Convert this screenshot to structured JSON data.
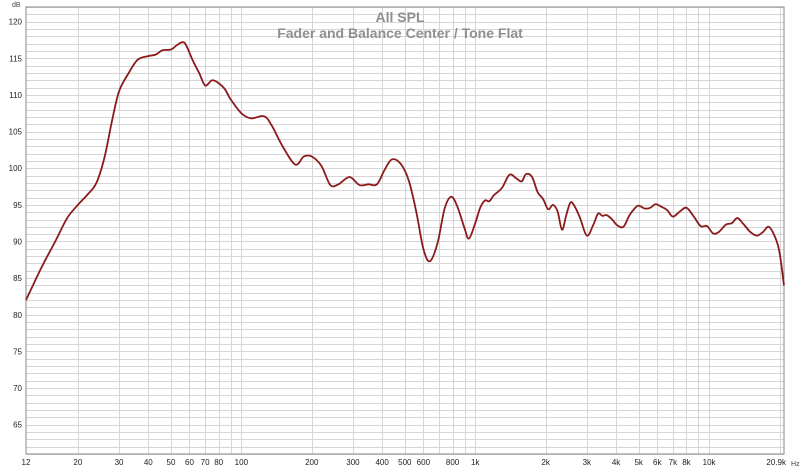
{
  "chart_data": {
    "type": "line",
    "title": "All SPL",
    "subtitle": "Fader and Balance Center / Tone Flat",
    "ylabel": "dB",
    "xlabel": "Hz",
    "x_scale": "log",
    "xlim": [
      12,
      20900
    ],
    "ylim": [
      61,
      122
    ],
    "grid": true,
    "x_ticks": [
      {
        "v": 12,
        "t": "12"
      },
      {
        "v": 20,
        "t": "20"
      },
      {
        "v": 30,
        "t": "30"
      },
      {
        "v": 40,
        "t": "40"
      },
      {
        "v": 50,
        "t": "50"
      },
      {
        "v": 60,
        "t": "60"
      },
      {
        "v": 70,
        "t": "70"
      },
      {
        "v": 80,
        "t": "80"
      },
      {
        "v": 100,
        "t": "100"
      },
      {
        "v": 200,
        "t": "200"
      },
      {
        "v": 300,
        "t": "300"
      },
      {
        "v": 400,
        "t": "400"
      },
      {
        "v": 500,
        "t": "500"
      },
      {
        "v": 600,
        "t": "600"
      },
      {
        "v": 800,
        "t": "800"
      },
      {
        "v": 1000,
        "t": "1k"
      },
      {
        "v": 2000,
        "t": "2k"
      },
      {
        "v": 3000,
        "t": "3k"
      },
      {
        "v": 4000,
        "t": "4k"
      },
      {
        "v": 5000,
        "t": "5k"
      },
      {
        "v": 6000,
        "t": "6k"
      },
      {
        "v": 7000,
        "t": "7k"
      },
      {
        "v": 8000,
        "t": "8k"
      },
      {
        "v": 10000,
        "t": "10k"
      },
      {
        "v": 20900,
        "t": "20.9k"
      }
    ],
    "y_ticks": [
      65,
      70,
      75,
      80,
      85,
      90,
      95,
      100,
      105,
      110,
      115,
      120
    ],
    "line_color": "#8b1a1a",
    "series": [
      {
        "values": [
          [
            12,
            82
          ],
          [
            14,
            86.5
          ],
          [
            16,
            90
          ],
          [
            18,
            93.2
          ],
          [
            20,
            95
          ],
          [
            22,
            96.4
          ],
          [
            24,
            98
          ],
          [
            26,
            101.5
          ],
          [
            28,
            106.5
          ],
          [
            30,
            110.5
          ],
          [
            33,
            113
          ],
          [
            36,
            114.8
          ],
          [
            40,
            115.3
          ],
          [
            43,
            115.5
          ],
          [
            46,
            116.1
          ],
          [
            50,
            116.2
          ],
          [
            53,
            116.8
          ],
          [
            56,
            117.2
          ],
          [
            58,
            116.8
          ],
          [
            62,
            114.7
          ],
          [
            66,
            113
          ],
          [
            70,
            111.3
          ],
          [
            75,
            112
          ],
          [
            80,
            111.6
          ],
          [
            85,
            110.8
          ],
          [
            90,
            109.4
          ],
          [
            100,
            107.5
          ],
          [
            110,
            106.8
          ],
          [
            125,
            107.1
          ],
          [
            135,
            105.8
          ],
          [
            150,
            103
          ],
          [
            170,
            100.5
          ],
          [
            185,
            101.6
          ],
          [
            200,
            101.6
          ],
          [
            220,
            100.3
          ],
          [
            240,
            97.7
          ],
          [
            260,
            97.8
          ],
          [
            290,
            98.8
          ],
          [
            320,
            97.7
          ],
          [
            350,
            97.8
          ],
          [
            380,
            97.8
          ],
          [
            410,
            99.8
          ],
          [
            440,
            101.2
          ],
          [
            480,
            100.6
          ],
          [
            520,
            98.3
          ],
          [
            560,
            94
          ],
          [
            600,
            89
          ],
          [
            640,
            87.3
          ],
          [
            690,
            89.8
          ],
          [
            740,
            94.5
          ],
          [
            790,
            96.1
          ],
          [
            840,
            94.7
          ],
          [
            900,
            91.8
          ],
          [
            940,
            90.4
          ],
          [
            1000,
            92.5
          ],
          [
            1050,
            94.6
          ],
          [
            1100,
            95.6
          ],
          [
            1150,
            95.5
          ],
          [
            1200,
            96.3
          ],
          [
            1300,
            97.3
          ],
          [
            1400,
            99.1
          ],
          [
            1500,
            98.6
          ],
          [
            1580,
            98.2
          ],
          [
            1650,
            99.2
          ],
          [
            1750,
            98.8
          ],
          [
            1850,
            96.7
          ],
          [
            1950,
            95.8
          ],
          [
            2050,
            94.4
          ],
          [
            2150,
            95
          ],
          [
            2250,
            94.1
          ],
          [
            2350,
            91.6
          ],
          [
            2450,
            93.6
          ],
          [
            2550,
            95.3
          ],
          [
            2650,
            94.9
          ],
          [
            2800,
            93.3
          ],
          [
            3000,
            90.8
          ],
          [
            3200,
            92.3
          ],
          [
            3350,
            93.8
          ],
          [
            3500,
            93.5
          ],
          [
            3650,
            93.6
          ],
          [
            3850,
            93
          ],
          [
            4050,
            92.2
          ],
          [
            4300,
            92
          ],
          [
            4550,
            93.5
          ],
          [
            4800,
            94.5
          ],
          [
            5000,
            94.9
          ],
          [
            5300,
            94.5
          ],
          [
            5600,
            94.6
          ],
          [
            5900,
            95.1
          ],
          [
            6200,
            94.8
          ],
          [
            6600,
            94.3
          ],
          [
            7000,
            93.4
          ],
          [
            7500,
            94.1
          ],
          [
            8000,
            94.6
          ],
          [
            8600,
            93.4
          ],
          [
            9200,
            92.1
          ],
          [
            9800,
            92.1
          ],
          [
            10400,
            91.1
          ],
          [
            11000,
            91.3
          ],
          [
            11800,
            92.3
          ],
          [
            12500,
            92.5
          ],
          [
            13200,
            93.2
          ],
          [
            14000,
            92.4
          ],
          [
            15000,
            91.3
          ],
          [
            16000,
            90.8
          ],
          [
            17000,
            91.3
          ],
          [
            18000,
            92
          ],
          [
            19200,
            90.5
          ],
          [
            20000,
            88.5
          ],
          [
            20900,
            84
          ]
        ]
      }
    ]
  }
}
